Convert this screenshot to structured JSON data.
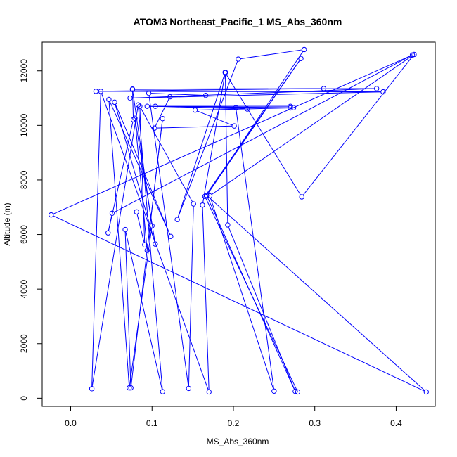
{
  "chart_data": {
    "type": "line",
    "title": "ATOM3 Northeast_Pacific_1 MS_Abs_360nm",
    "xlabel": "MS_Abs_360nm",
    "ylabel": "Altitude (m)",
    "xlim": [
      -0.035,
      0.448
    ],
    "ylim": [
      -300,
      13050
    ],
    "xticks": [
      0.0,
      0.1,
      0.2,
      0.3,
      0.4
    ],
    "xtick_labels": [
      "0.0",
      "0.1",
      "0.2",
      "0.3",
      "0.4"
    ],
    "yticks": [
      0,
      2000,
      4000,
      6000,
      8000,
      10000,
      12000
    ],
    "ytick_labels": [
      "0",
      "2000",
      "4000",
      "6000",
      "8000",
      "10000",
      "12000"
    ],
    "grid": false,
    "legend": "none",
    "series_color": "#0000ff",
    "points": [
      {
        "x": 0.279,
        "y": 230
      },
      {
        "x": 0.165,
        "y": 7400
      },
      {
        "x": 0.283,
        "y": 12450
      },
      {
        "x": 0.167,
        "y": 7430
      },
      {
        "x": 0.287,
        "y": 12780
      },
      {
        "x": 0.206,
        "y": 12430
      },
      {
        "x": 0.131,
        "y": 6550
      },
      {
        "x": 0.19,
        "y": 11950
      },
      {
        "x": 0.162,
        "y": 7080
      },
      {
        "x": 0.17,
        "y": 230
      },
      {
        "x": 0.037,
        "y": 11250
      },
      {
        "x": 0.026,
        "y": 350
      },
      {
        "x": 0.083,
        "y": 10750
      },
      {
        "x": 0.113,
        "y": 240
      },
      {
        "x": 0.067,
        "y": 6180
      },
      {
        "x": 0.074,
        "y": 380
      },
      {
        "x": 0.113,
        "y": 10250
      },
      {
        "x": 0.094,
        "y": 5420
      },
      {
        "x": 0.079,
        "y": 10260
      },
      {
        "x": 0.104,
        "y": 5650
      },
      {
        "x": 0.054,
        "y": 10850
      },
      {
        "x": 0.123,
        "y": 5930
      },
      {
        "x": 0.047,
        "y": 10950
      },
      {
        "x": 0.072,
        "y": 380
      },
      {
        "x": 0.1,
        "y": 6320
      },
      {
        "x": 0.076,
        "y": 11320
      },
      {
        "x": 0.376,
        "y": 11350
      },
      {
        "x": 0.073,
        "y": 11000
      },
      {
        "x": 0.384,
        "y": 11230
      },
      {
        "x": 0.031,
        "y": 11250
      },
      {
        "x": 0.311,
        "y": 11350
      },
      {
        "x": 0.076,
        "y": 11330
      },
      {
        "x": 0.077,
        "y": 10210
      },
      {
        "x": 0.046,
        "y": 6060
      },
      {
        "x": 0.051,
        "y": 6780
      },
      {
        "x": 0.42,
        "y": 12580
      },
      {
        "x": -0.024,
        "y": 6720
      },
      {
        "x": 0.437,
        "y": 230
      },
      {
        "x": 0.167,
        "y": 7440
      },
      {
        "x": 0.276,
        "y": 250
      },
      {
        "x": 0.193,
        "y": 6350
      },
      {
        "x": 0.19,
        "y": 11950
      },
      {
        "x": 0.19,
        "y": 11930
      },
      {
        "x": 0.284,
        "y": 7380
      },
      {
        "x": 0.422,
        "y": 12600
      },
      {
        "x": 0.171,
        "y": 7420
      },
      {
        "x": 0.25,
        "y": 260
      },
      {
        "x": 0.203,
        "y": 10650
      },
      {
        "x": 0.217,
        "y": 10600
      },
      {
        "x": 0.104,
        "y": 10700
      },
      {
        "x": 0.27,
        "y": 10700
      },
      {
        "x": 0.274,
        "y": 10650
      },
      {
        "x": 0.094,
        "y": 10700
      },
      {
        "x": 0.27,
        "y": 10640
      },
      {
        "x": 0.153,
        "y": 10560
      },
      {
        "x": 0.201,
        "y": 9980
      },
      {
        "x": 0.103,
        "y": 9900
      },
      {
        "x": 0.122,
        "y": 11050
      },
      {
        "x": 0.166,
        "y": 11100
      },
      {
        "x": 0.096,
        "y": 11180
      },
      {
        "x": 0.145,
        "y": 360
      },
      {
        "x": 0.151,
        "y": 7120
      },
      {
        "x": 0.085,
        "y": 10700
      },
      {
        "x": 0.091,
        "y": 5620
      },
      {
        "x": 0.081,
        "y": 6830
      }
    ]
  }
}
